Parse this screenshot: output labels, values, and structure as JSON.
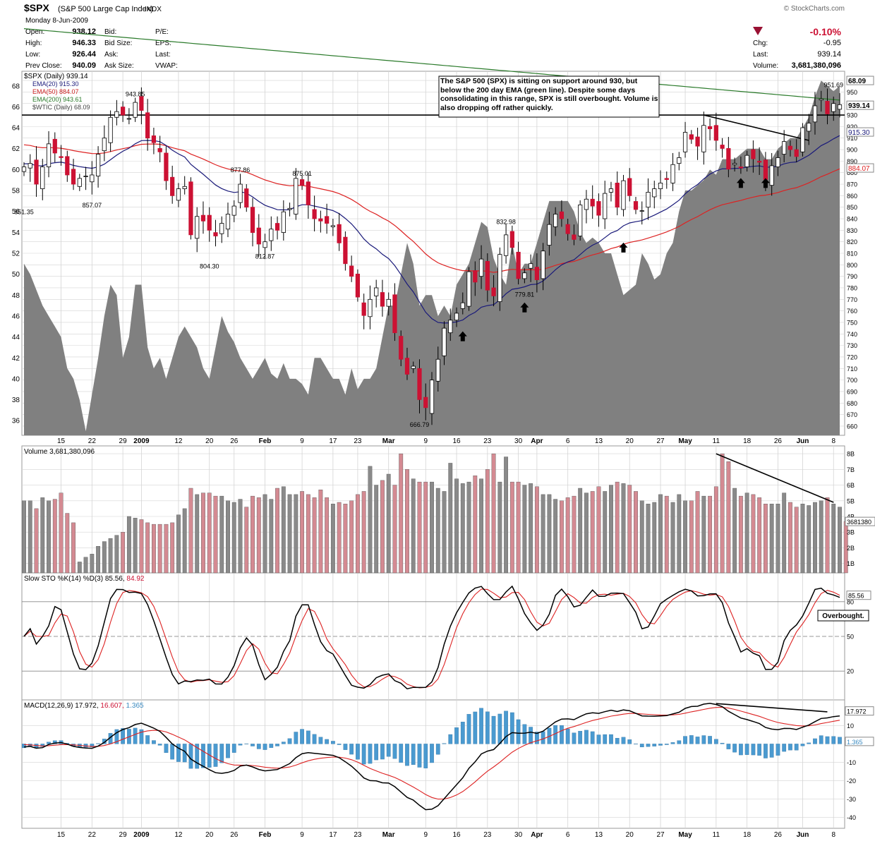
{
  "header": {
    "symbol": "$SPX",
    "name": "(S&P 500 Large Cap Index)",
    "exchange": "INDX",
    "watermark": "© StockCharts.com",
    "date": "Monday  8-Jun-2009",
    "left_labels": [
      "Open:",
      "High:",
      "Low:",
      "Prev Close:"
    ],
    "left_values": [
      "938.12",
      "946.33",
      "926.44",
      "940.09"
    ],
    "mid_labels": [
      "Bid:",
      "Bid Size:",
      "Ask:",
      "Ask Size:"
    ],
    "right_labels": [
      "P/E:",
      "EPS:",
      "Last:",
      "VWAP:"
    ],
    "pct_change": "-0.10%",
    "chg_label": "Chg:",
    "chg_value": "-0.95",
    "last_label": "Last:",
    "last_value": "939.14",
    "volume_label": "Volume:",
    "volume_value": "3,681,380,096"
  },
  "colors": {
    "up": "#000000",
    "down": "#cc1133",
    "ema20": "#1a1a7a",
    "ema50": "#dd2222",
    "ema200": "#2a7a2a",
    "area": "#808080",
    "vol_up": "#8a8a8a",
    "vol_down": "#d48a92",
    "macd_hist": "#4a9ad0",
    "chg_red": "#cc1133",
    "grid": "#d4d4d4"
  },
  "chart_data": [
    {
      "type": "candlestick",
      "title": "$SPX (Daily) 939.14",
      "legend": [
        "EMA(20) 915.30",
        "EMA(50) 884.07",
        "EMA(200) 943.61",
        "$WTIC (Daily) 68.09"
      ],
      "annotation": "The S&P 500 (SPX) is sitting on support around 930, but below the 200 day EMA (green line). Despite some days consolidating in this range, SPX is still overbought. Volume is also dropping off rather quickly.",
      "support_level": 930,
      "ylim": [
        652,
        968
      ],
      "right_ticks": [
        660,
        670,
        680,
        690,
        700,
        710,
        720,
        730,
        740,
        750,
        760,
        770,
        780,
        790,
        800,
        810,
        820,
        830,
        840,
        850,
        860,
        870,
        880,
        890,
        900,
        910,
        920,
        930,
        940,
        950,
        960
      ],
      "left_ticks": [
        36,
        38,
        40,
        42,
        44,
        46,
        48,
        50,
        52,
        54,
        56,
        58,
        60,
        62,
        64,
        66,
        68
      ],
      "left_ylim": [
        34.6,
        69.4
      ],
      "x_labels": [
        "15",
        "22",
        "29",
        "2009",
        "12",
        "20",
        "26",
        "Feb",
        "9",
        "17",
        "23",
        "Mar",
        "9",
        "16",
        "23",
        "30",
        "Apr",
        "6",
        "13",
        "20",
        "27",
        "May",
        "11",
        "18",
        "26",
        "Jun",
        "8"
      ],
      "x_label_index": [
        6,
        11,
        16,
        19,
        25,
        30,
        34,
        39,
        45,
        50,
        54,
        59,
        65,
        70,
        75,
        80,
        83,
        88,
        93,
        98,
        103,
        107,
        112,
        117,
        122,
        126,
        131
      ],
      "bold_labels": [
        "2009",
        "Feb",
        "Mar",
        "Apr",
        "May",
        "Jun"
      ],
      "price_labels": [
        "851.35",
        "857.07",
        "943.85",
        "877.86",
        "875.01",
        "804.30",
        "812.87",
        "832.98",
        "779.81",
        "666.79",
        "951.69"
      ],
      "price_label_values": [
        [
          0,
          851.35
        ],
        [
          11,
          857.07
        ],
        [
          18,
          943.85
        ],
        [
          35,
          877.86
        ],
        [
          45,
          875.01
        ],
        [
          30,
          804.3
        ],
        [
          39,
          812.87
        ],
        [
          78,
          832.98
        ],
        [
          81,
          779.81
        ],
        [
          64,
          666.79
        ],
        [
          131,
          951.69
        ]
      ],
      "right_badges": [
        "68.09",
        "939.14",
        "915.30",
        "884.07"
      ],
      "badge_values": [
        960,
        938.5,
        915.3,
        884.07
      ],
      "arrow_values": [
        [
          71,
          738
        ],
        [
          81,
          763
        ],
        [
          97,
          815
        ],
        [
          116,
          871
        ],
        [
          120,
          871
        ]
      ],
      "close": [
        885,
        888,
        870,
        885,
        905,
        897,
        893,
        878,
        870,
        875,
        877,
        878,
        896,
        910,
        928,
        933,
        930,
        927,
        941,
        934,
        910,
        906,
        898,
        873,
        860,
        866,
        868,
        826,
        842,
        838,
        830,
        825,
        836,
        844,
        851,
        870,
        850,
        828,
        818,
        820,
        831,
        830,
        846,
        849,
        875,
        869,
        852,
        840,
        838,
        836,
        834,
        819,
        801,
        790,
        772,
        756,
        770,
        780,
        764,
        770,
        741,
        718,
        705,
        712,
        683,
        676,
        700,
        718,
        745,
        752,
        758,
        767,
        794,
        785,
        805,
        778,
        773,
        809,
        826,
        815,
        788,
        793,
        801,
        787,
        812,
        835,
        844,
        840,
        827,
        822,
        852,
        857,
        851,
        843,
        862,
        866,
        850,
        873,
        860,
        848,
        847,
        863,
        866,
        871,
        874,
        887,
        893,
        915,
        909,
        903,
        921,
        918,
        908,
        901,
        883,
        888,
        884,
        895,
        892,
        889,
        874,
        886,
        893,
        907,
        900,
        894,
        919,
        923,
        938,
        944,
        931,
        940,
        939
      ],
      "volume_b": [
        5.0,
        5.0,
        4.5,
        5.2,
        5.0,
        5.1,
        5.5,
        4.2,
        3.6,
        1.1,
        1.4,
        1.6,
        2.1,
        2.4,
        2.6,
        2.8,
        3.0,
        4.0,
        3.9,
        3.8,
        3.6,
        3.5,
        3.5,
        3.5,
        3.6,
        4.1,
        4.5,
        5.8,
        5.4,
        5.5,
        5.5,
        5.3,
        5.3,
        5.0,
        4.9,
        5.1,
        4.6,
        5.3,
        5.2,
        5.4,
        5.1,
        5.8,
        5.9,
        5.4,
        5.4,
        5.6,
        5.4,
        5.2,
        5.7,
        5.2,
        4.8,
        4.9,
        4.8,
        5.0,
        5.4,
        5.6,
        7.2,
        6.0,
        6.3,
        6.7,
        6.0,
        8.0,
        7.0,
        6.4,
        6.2,
        6.2,
        6.2,
        5.8,
        5.6,
        7.4,
        6.4,
        6.1,
        6.2,
        6.6,
        6.4,
        7.0,
        8.0,
        6.2,
        7.8,
        6.2,
        6.2,
        6.0,
        6.1,
        5.9,
        5.4,
        5.4,
        5.1,
        5.0,
        5.2,
        5.3,
        5.8,
        5.5,
        5.6,
        5.9,
        5.6,
        6.0,
        6.2,
        6.1,
        6.0,
        5.6,
        5.0,
        4.8,
        4.9,
        5.4,
        5.3,
        4.9,
        5.4,
        5.0,
        5.0,
        5.6,
        5.3,
        5.3,
        5.9,
        8.0,
        7.5,
        5.8,
        5.3,
        5.5,
        5.4,
        5.2,
        4.8,
        4.8,
        4.8,
        5.5,
        4.9,
        4.6,
        4.8,
        4.7,
        4.9,
        5.0,
        5.2,
        4.8,
        4.6,
        3.68
      ],
      "vol_ylim": [
        0.4,
        8.5
      ],
      "vol_ticks": [
        1,
        2,
        3,
        4,
        5,
        6,
        7,
        8
      ],
      "vol_tick_labels": [
        "1B",
        "2B",
        "3B",
        "4B",
        "5B",
        "6B",
        "7B",
        "8B"
      ],
      "volume_title": "Volume 3,681,380,096",
      "volume_badge": "3681380",
      "sto_title_black": "Slow STO %K(14) %D(3) 85.56,",
      "sto_title_red": " 84.92",
      "sto_ticks": [
        20,
        50,
        80
      ],
      "sto_ylim": [
        0,
        100
      ],
      "sto_badge": "85.56",
      "sto_annotation": "Overbought.",
      "macd_title_black": "MACD(12,26,9) 17.972,",
      "macd_title_red": " 16.607,",
      "macd_title_blue": " 1.365",
      "macd_ticks": [
        -40,
        -30,
        -20,
        -10,
        10
      ],
      "macd_ylim": [
        -46,
        24
      ],
      "macd_badges": [
        "17.972",
        "1.365"
      ]
    }
  ]
}
